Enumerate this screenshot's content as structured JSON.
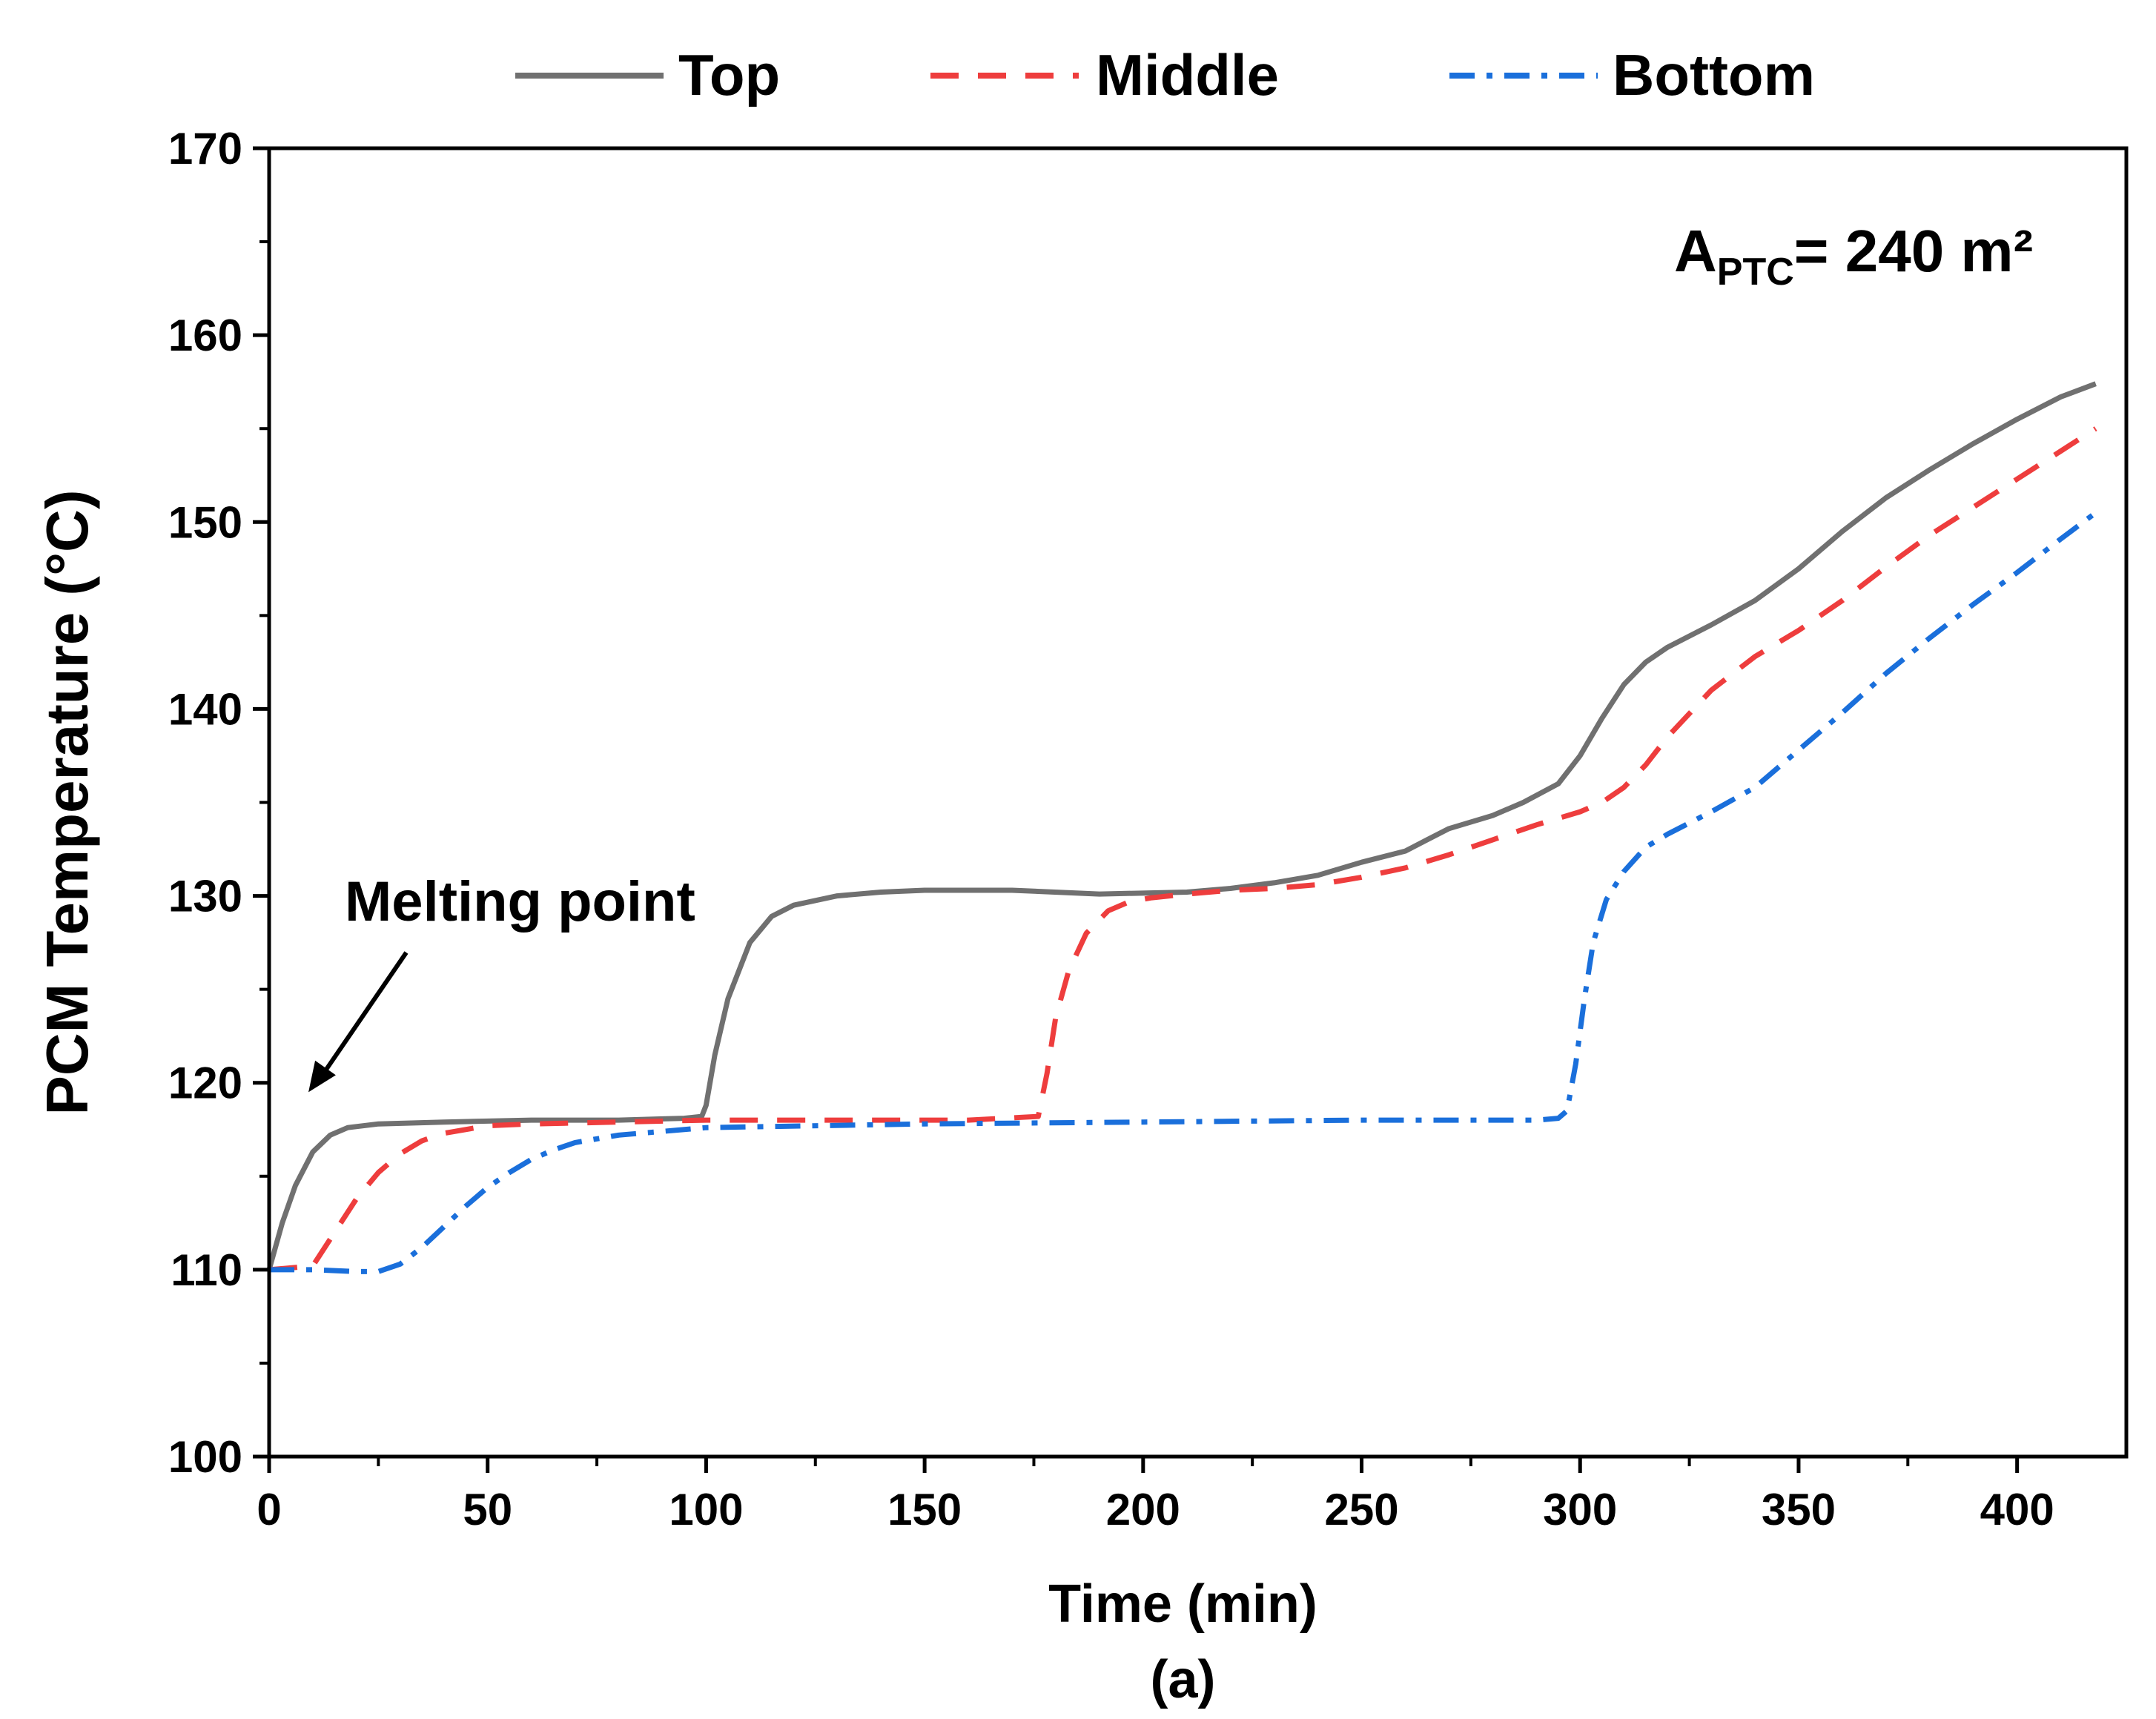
{
  "chart_data": {
    "type": "line",
    "title": "",
    "xlabel": "Time (min)",
    "ylabel": "PCM Temperature (°C)",
    "caption": "(a)",
    "xlim": [
      0,
      425
    ],
    "ylim": [
      100,
      170
    ],
    "xticks": [
      0,
      50,
      100,
      150,
      200,
      250,
      300,
      350,
      400
    ],
    "yticks": [
      100,
      110,
      120,
      130,
      140,
      150,
      160,
      170
    ],
    "grid": false,
    "legend_position": "top",
    "annotations": [
      {
        "text": "Melting point",
        "arrow_to": [
          9,
          119.5
        ]
      }
    ],
    "label_main": "A",
    "label_sub": "PTC",
    "label_rest": "= 240 m²",
    "series": [
      {
        "name": "Top",
        "color": "#707070",
        "style": "solid",
        "x": [
          0,
          3,
          6,
          10,
          14,
          18,
          25,
          40,
          60,
          80,
          95,
          99,
          100,
          102,
          105,
          110,
          115,
          120,
          130,
          140,
          150,
          170,
          190,
          210,
          220,
          230,
          240,
          250,
          260,
          265,
          270,
          280,
          287,
          295,
          300,
          305,
          310,
          315,
          320,
          325,
          330,
          340,
          350,
          360,
          370,
          380,
          390,
          400,
          410,
          418
        ],
        "y": [
          110,
          112.5,
          114.5,
          116.3,
          117.2,
          117.6,
          117.8,
          117.9,
          118,
          118,
          118.1,
          118.2,
          118.8,
          121.5,
          124.5,
          127.5,
          128.9,
          129.5,
          130,
          130.2,
          130.3,
          130.3,
          130.1,
          130.2,
          130.4,
          130.7,
          131.1,
          131.8,
          132.4,
          133,
          133.6,
          134.3,
          135,
          136,
          137.5,
          139.5,
          141.3,
          142.5,
          143.3,
          143.9,
          144.5,
          145.8,
          147.5,
          149.5,
          151.3,
          152.8,
          154.2,
          155.5,
          156.7,
          157.4
        ]
      },
      {
        "name": "Middle",
        "color": "#ee3d3d",
        "style": "dashed",
        "x": [
          0,
          10,
          15,
          20,
          25,
          30,
          35,
          40,
          50,
          60,
          80,
          100,
          120,
          140,
          160,
          176,
          178,
          180,
          183,
          187,
          192,
          197,
          202,
          210,
          220,
          230,
          240,
          250,
          260,
          270,
          280,
          290,
          300,
          305,
          310,
          315,
          320,
          330,
          340,
          350,
          360,
          370,
          380,
          390,
          400,
          410,
          418
        ],
        "y": [
          110,
          110.2,
          112,
          113.8,
          115.2,
          116.2,
          116.9,
          117.3,
          117.7,
          117.8,
          117.9,
          118,
          118,
          118,
          118,
          118.2,
          120.5,
          123.5,
          126,
          128,
          129.2,
          129.7,
          129.9,
          130.1,
          130.3,
          130.4,
          130.6,
          131,
          131.5,
          132.2,
          133,
          133.8,
          134.5,
          135,
          135.8,
          137,
          138.5,
          141,
          142.8,
          144.2,
          145.8,
          147.6,
          149.3,
          150.8,
          152.3,
          153.8,
          155
        ]
      },
      {
        "name": "Bottom",
        "color": "#1a6fdb",
        "style": "dashdot",
        "x": [
          0,
          10,
          20,
          25,
          30,
          35,
          40,
          45,
          50,
          55,
          60,
          65,
          70,
          80,
          90,
          100,
          150,
          200,
          250,
          290,
          295,
          297,
          299,
          301,
          303,
          306,
          310,
          315,
          320,
          330,
          340,
          350,
          360,
          370,
          380,
          390,
          400,
          410,
          418
        ],
        "y": [
          110,
          110,
          109.9,
          109.9,
          110.3,
          111.2,
          112.3,
          113.4,
          114.4,
          115.2,
          115.9,
          116.4,
          116.8,
          117.2,
          117.4,
          117.6,
          117.8,
          117.9,
          118,
          118,
          118.1,
          118.5,
          121,
          124.5,
          127.5,
          129.8,
          131.3,
          132.6,
          133.3,
          134.5,
          135.8,
          137.8,
          139.8,
          141.9,
          143.8,
          145.6,
          147.3,
          149.1,
          150.5
        ]
      }
    ]
  }
}
